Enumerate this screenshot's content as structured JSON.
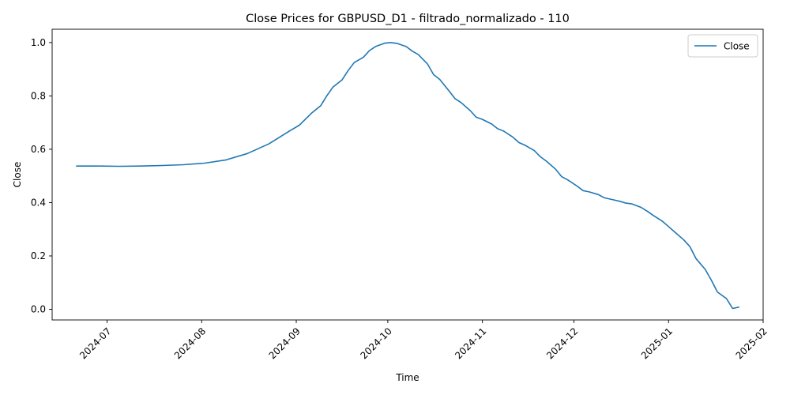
{
  "chart_data": {
    "type": "line",
    "title": "Close Prices for GBPUSD_D1 - filtrado_normalizado - 110",
    "xlabel": "Time",
    "ylabel": "Close",
    "ylim": [
      -0.04,
      1.05
    ],
    "xlim": [
      "2024-06-13",
      "2025-02-01"
    ],
    "x_ticks": [
      "2024-07",
      "2024-08",
      "2024-09",
      "2024-10",
      "2024-11",
      "2024-12",
      "2025-01",
      "2025-02"
    ],
    "y_ticks": [
      "0.0",
      "0.2",
      "0.4",
      "0.6",
      "0.8",
      "1.0"
    ],
    "legend": {
      "position": "top-right",
      "entries": [
        "Close"
      ]
    },
    "grid": false,
    "colors": {
      "series": "#1f77b4"
    },
    "series": [
      {
        "name": "Close",
        "x": [
          "2024-06-21",
          "2024-06-28",
          "2024-07-05",
          "2024-07-12",
          "2024-07-19",
          "2024-07-26",
          "2024-08-02",
          "2024-08-09",
          "2024-08-16",
          "2024-08-23",
          "2024-08-30",
          "2024-09-02",
          "2024-09-06",
          "2024-09-09",
          "2024-09-11",
          "2024-09-13",
          "2024-09-16",
          "2024-09-18",
          "2024-09-20",
          "2024-09-23",
          "2024-09-25",
          "2024-09-27",
          "2024-09-30",
          "2024-10-02",
          "2024-10-04",
          "2024-10-07",
          "2024-10-09",
          "2024-10-11",
          "2024-10-14",
          "2024-10-16",
          "2024-10-18",
          "2024-10-21",
          "2024-10-23",
          "2024-10-25",
          "2024-10-28",
          "2024-10-30",
          "2024-11-01",
          "2024-11-04",
          "2024-11-06",
          "2024-11-08",
          "2024-11-11",
          "2024-11-13",
          "2024-11-15",
          "2024-11-18",
          "2024-11-20",
          "2024-11-22",
          "2024-11-25",
          "2024-11-27",
          "2024-11-29",
          "2024-12-02",
          "2024-12-04",
          "2024-12-06",
          "2024-12-09",
          "2024-12-11",
          "2024-12-13",
          "2024-12-16",
          "2024-12-18",
          "2024-12-20",
          "2024-12-23",
          "2024-12-25",
          "2024-12-27",
          "2024-12-30",
          "2025-01-01",
          "2025-01-03",
          "2025-01-06",
          "2025-01-08",
          "2025-01-10",
          "2025-01-13",
          "2025-01-15",
          "2025-01-17",
          "2025-01-20",
          "2025-01-22",
          "2025-01-24"
        ],
        "values": [
          0.537,
          0.537,
          0.536,
          0.537,
          0.539,
          0.542,
          0.548,
          0.56,
          0.584,
          0.62,
          0.67,
          0.69,
          0.735,
          0.763,
          0.8,
          0.833,
          0.86,
          0.895,
          0.925,
          0.945,
          0.97,
          0.985,
          0.998,
          1.0,
          0.997,
          0.985,
          0.968,
          0.955,
          0.92,
          0.88,
          0.862,
          0.82,
          0.79,
          0.775,
          0.745,
          0.72,
          0.712,
          0.695,
          0.677,
          0.668,
          0.645,
          0.625,
          0.615,
          0.595,
          0.572,
          0.555,
          0.525,
          0.497,
          0.485,
          0.462,
          0.445,
          0.44,
          0.43,
          0.418,
          0.413,
          0.405,
          0.398,
          0.395,
          0.382,
          0.368,
          0.352,
          0.33,
          0.31,
          0.29,
          0.26,
          0.235,
          0.19,
          0.15,
          0.11,
          0.065,
          0.04,
          0.003,
          0.008
        ]
      }
    ]
  }
}
